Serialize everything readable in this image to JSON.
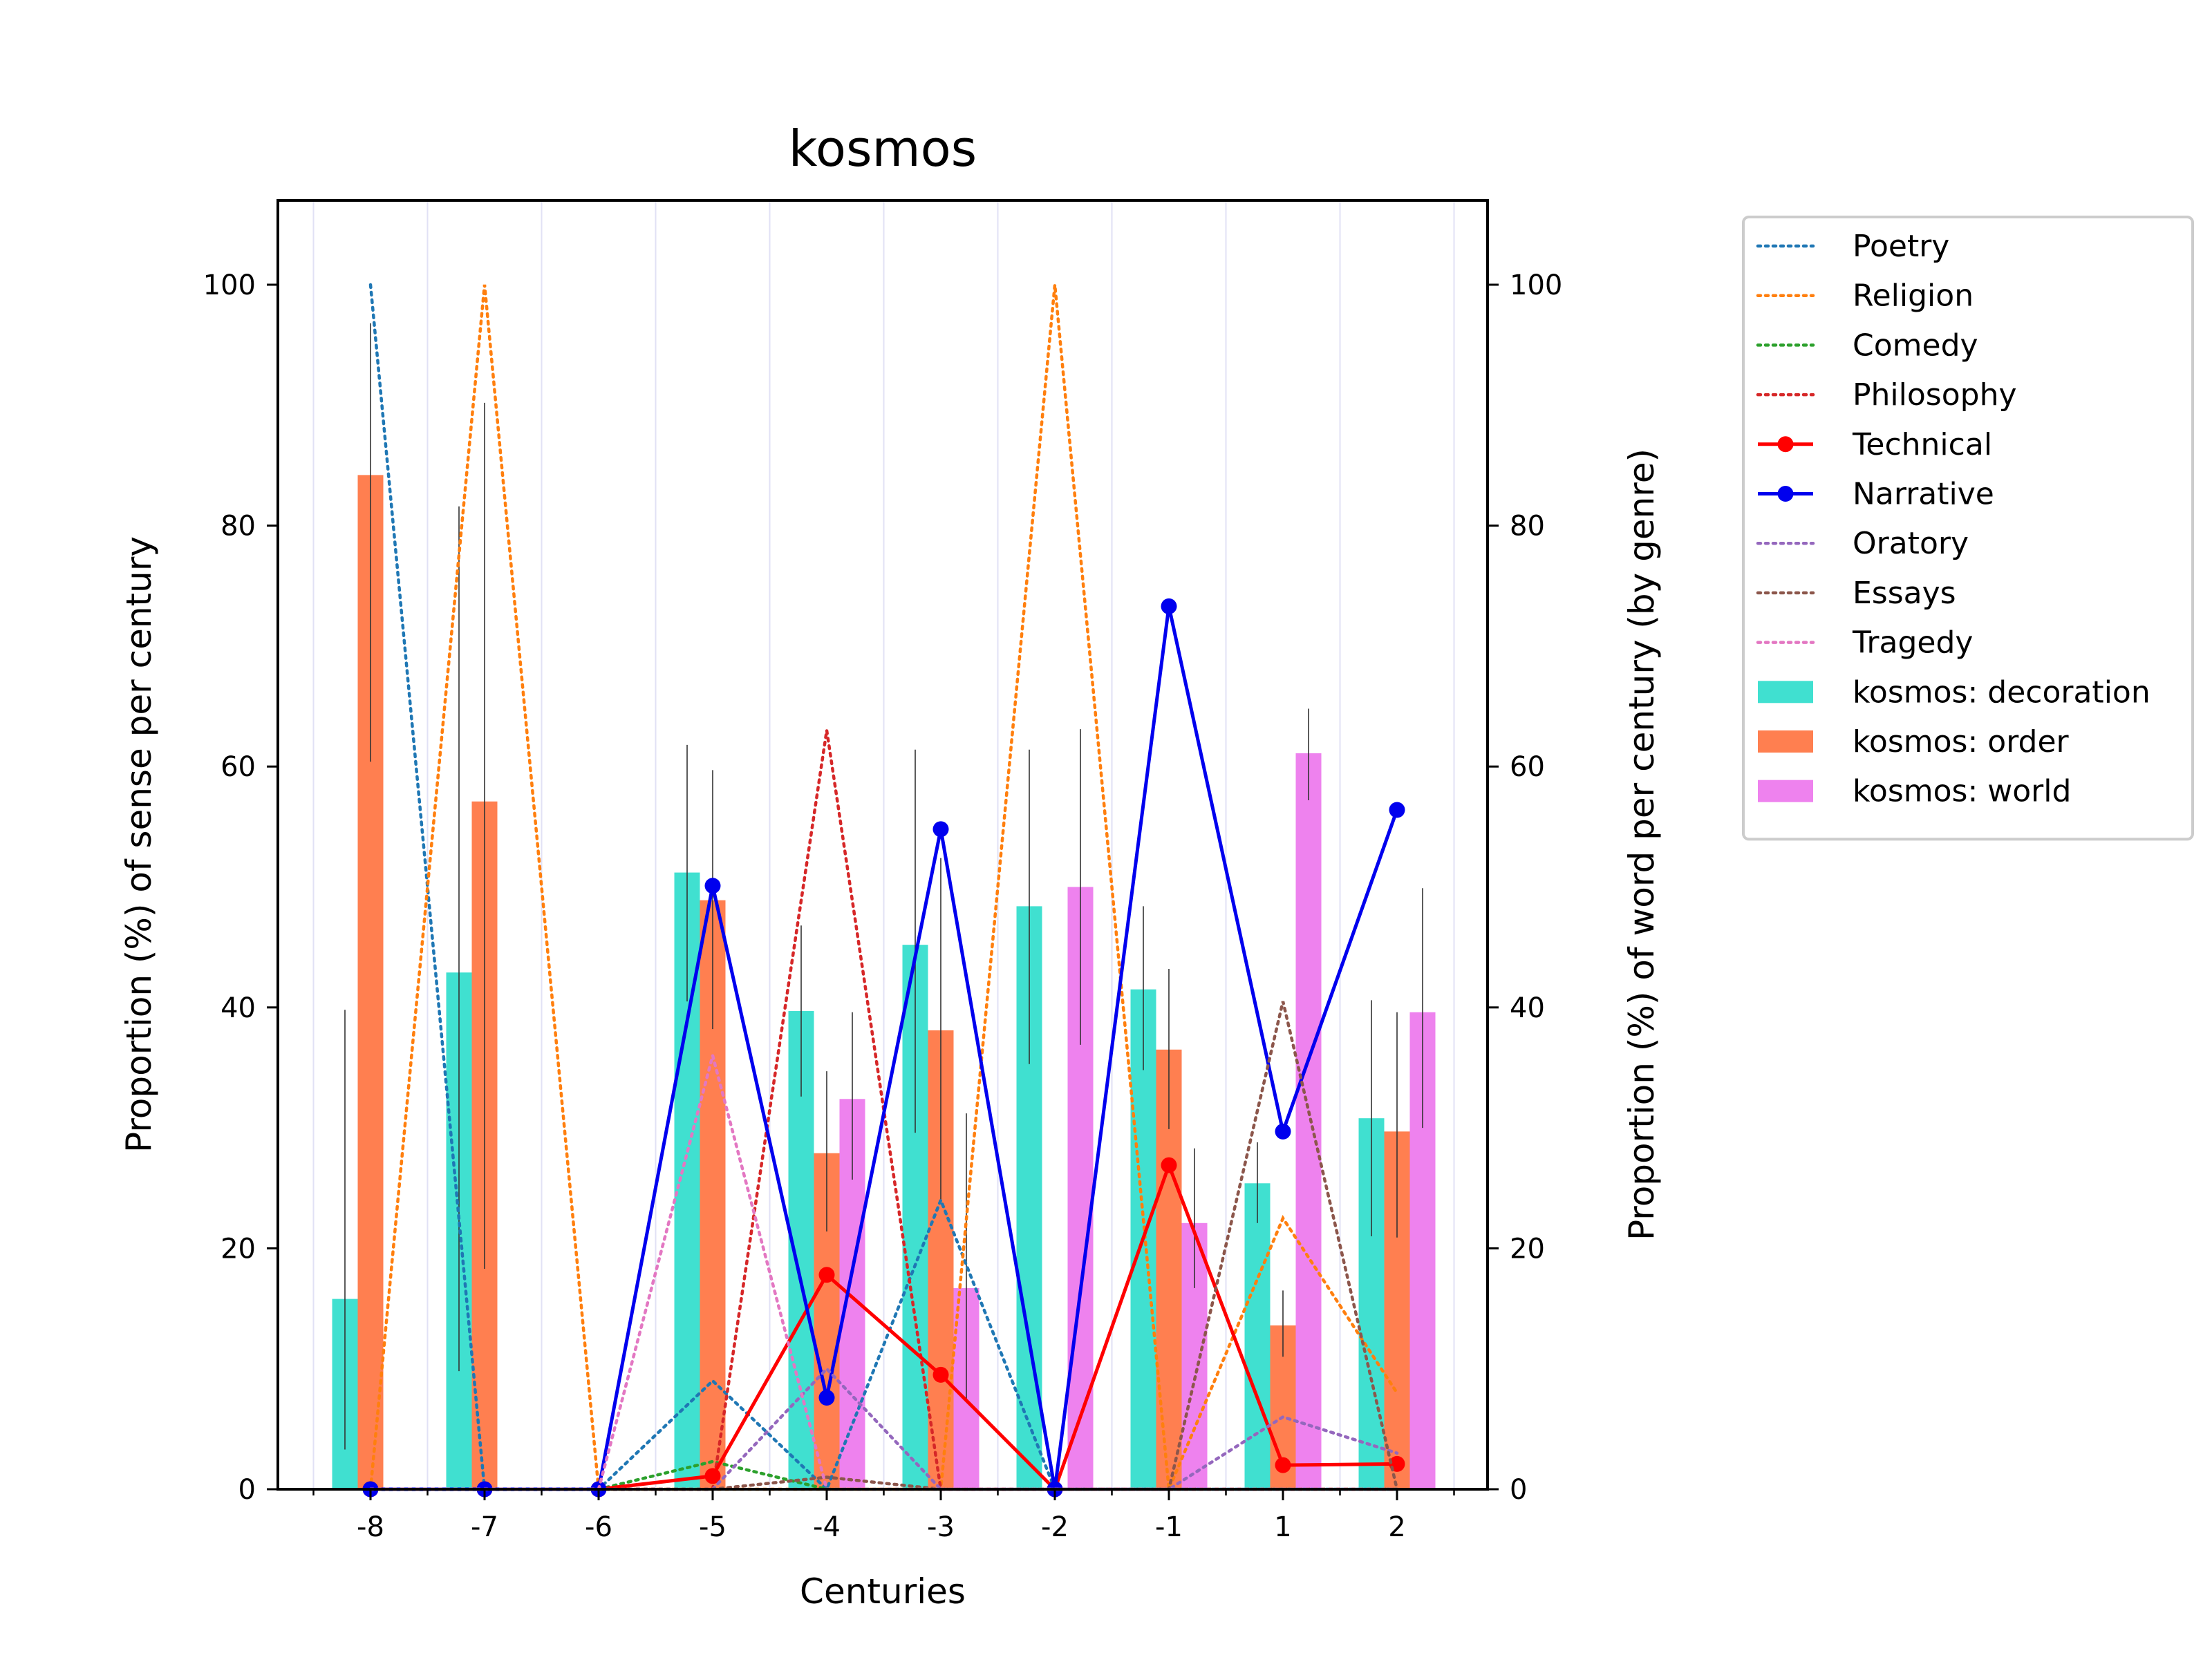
{
  "chart_data": {
    "type": "bar",
    "title": "kosmos",
    "xlabel": "Centuries",
    "ylabel_left": "Proportion (%) of sense per century",
    "ylabel_right": "Proportion (%) of word per century (by genre)",
    "categories": [
      "-8",
      "-7",
      "-6",
      "-5",
      "-4",
      "-3",
      "-2",
      "-1",
      "1",
      "2"
    ],
    "ylim": [
      0,
      107
    ],
    "yticks": [
      0,
      20,
      40,
      60,
      80,
      100
    ],
    "legend_position": "outside-right",
    "bar_series": [
      {
        "name": "kosmos: decoration",
        "color": "#40e0d0",
        "values": [
          15.8,
          42.9,
          0,
          51.2,
          39.7,
          45.2,
          48.4,
          41.5,
          25.4,
          30.8
        ],
        "err_low": [
          3.3,
          9.8,
          null,
          40.5,
          32.6,
          29.6,
          35.3,
          34.8,
          22.1,
          21.0
        ],
        "err_high": [
          39.8,
          81.6,
          null,
          61.8,
          46.8,
          61.4,
          61.4,
          48.4,
          28.8,
          40.6
        ]
      },
      {
        "name": "kosmos: order",
        "color": "#ff7f50",
        "values": [
          84.2,
          57.1,
          0,
          48.9,
          27.9,
          38.1,
          0,
          36.5,
          13.6,
          29.7
        ],
        "err_low": [
          60.4,
          18.3,
          null,
          38.2,
          21.4,
          24.0,
          null,
          29.9,
          11.0,
          20.9
        ],
        "err_high": [
          96.8,
          90.2,
          null,
          59.7,
          34.7,
          52.4,
          null,
          43.2,
          16.5,
          39.6
        ]
      },
      {
        "name": "kosmos: world",
        "color": "#ee82ee",
        "values": [
          0,
          0,
          0,
          0,
          32.4,
          16.7,
          50.0,
          22.1,
          61.1,
          39.6
        ],
        "err_low": [
          null,
          null,
          null,
          null,
          25.7,
          7.3,
          36.9,
          16.7,
          57.2,
          30.0
        ],
        "err_high": [
          null,
          null,
          null,
          null,
          39.6,
          31.2,
          63.1,
          28.3,
          64.8,
          49.9
        ]
      }
    ],
    "line_series": [
      {
        "name": "Poetry",
        "color": "#1f77b4",
        "style": "dotted",
        "values": [
          100,
          0,
          0,
          9,
          0,
          24,
          0,
          0,
          0,
          0
        ]
      },
      {
        "name": "Religion",
        "color": "#ff7f0e",
        "style": "dotted",
        "values": [
          0,
          100,
          0,
          0,
          0,
          0,
          100,
          0,
          22.5,
          8
        ]
      },
      {
        "name": "Comedy",
        "color": "#2ca02c",
        "style": "dotted",
        "values": [
          0,
          0,
          0,
          2.3,
          0,
          0,
          0,
          0,
          0,
          0
        ]
      },
      {
        "name": "Philosophy",
        "color": "#d62728",
        "style": "dotted",
        "values": [
          0,
          0,
          0,
          0,
          63,
          0,
          0,
          0,
          0,
          0
        ]
      },
      {
        "name": "Technical",
        "color": "#ff0000",
        "style": "solid-marker",
        "values": [
          0,
          0,
          0,
          1.1,
          17.8,
          9.5,
          0,
          26.9,
          2.0,
          2.1
        ]
      },
      {
        "name": "Narrative",
        "color": "#0000ee",
        "style": "solid-marker",
        "values": [
          0,
          0,
          0,
          50.1,
          7.6,
          54.8,
          0,
          73.3,
          29.7,
          56.4
        ]
      },
      {
        "name": "Oratory",
        "color": "#9467bd",
        "style": "dotted",
        "values": [
          0,
          0,
          0,
          0,
          10,
          0,
          0,
          0,
          6,
          3
        ]
      },
      {
        "name": "Essays",
        "color": "#8c564b",
        "style": "dotted",
        "values": [
          0,
          0,
          0,
          0,
          1,
          0,
          0,
          0,
          40.5,
          0
        ]
      },
      {
        "name": "Tragedy",
        "color": "#e377c2",
        "style": "dotted",
        "values": [
          0,
          0,
          0,
          36,
          0,
          0,
          0,
          0,
          0,
          0
        ]
      }
    ]
  }
}
